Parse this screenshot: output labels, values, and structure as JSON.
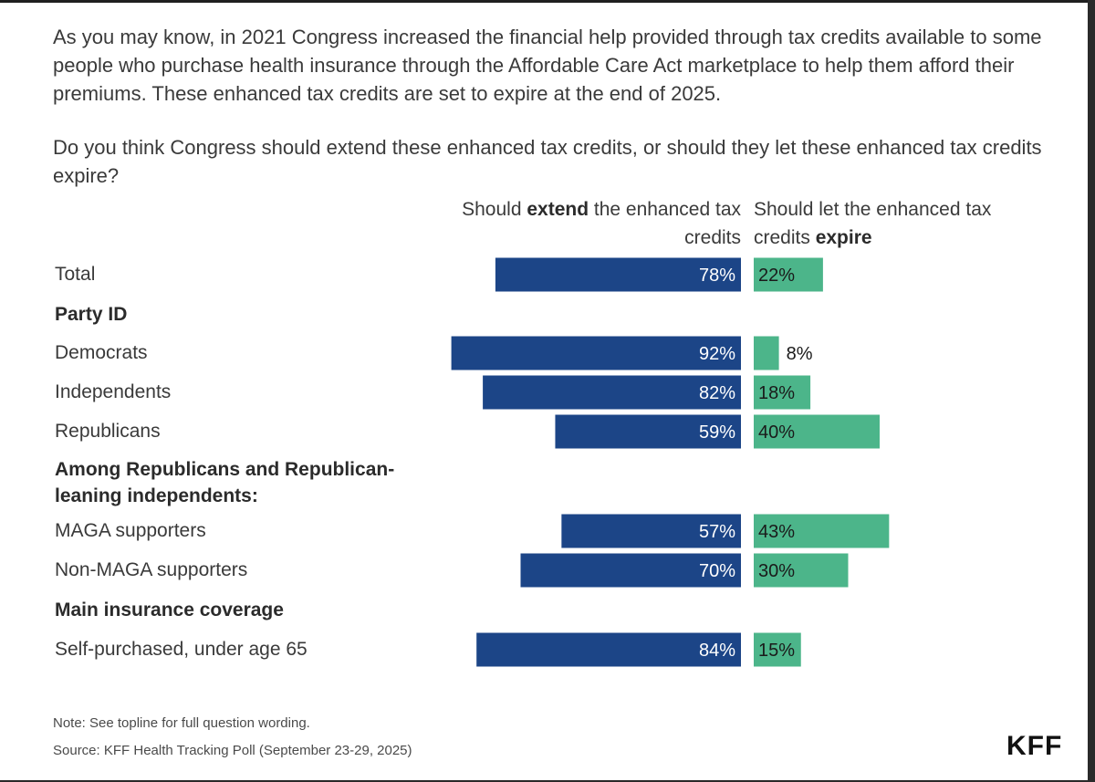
{
  "intro": "As you may know, in 2021 Congress increased the financial help provided through tax credits available to some people who purchase health insurance through the Affordable Care Act marketplace to help them afford their premiums. These enhanced tax credits are set to expire at the end of 2025.",
  "question": "Do you think Congress should extend these enhanced tax credits, or should they let these enhanced tax credits expire?",
  "col_extend": {
    "pre": "Should ",
    "bold": "extend",
    "post_line1": " the enhanced tax",
    "line2": "credits"
  },
  "col_expire": {
    "line1": "Should let the enhanced tax",
    "line2_pre": "credits ",
    "line2_bold": "expire"
  },
  "groups": {
    "party": "Party ID",
    "rep_lean": "Among Republicans and Republican-leaning independents:",
    "coverage": "Main insurance coverage"
  },
  "colors": {
    "extend": "#1c4587",
    "expire": "#4cb58a"
  },
  "chart_data": {
    "type": "bar",
    "orientation": "horizontal-diverging",
    "categories": [
      "Total",
      "Democrats",
      "Independents",
      "Republicans",
      "MAGA supporters",
      "Non-MAGA supporters",
      "Self-purchased, under age 65"
    ],
    "series": [
      {
        "name": "Should extend the enhanced tax credits",
        "values": [
          78,
          92,
          82,
          59,
          57,
          70,
          84
        ],
        "labels": [
          "78%",
          "92%",
          "82%",
          "59%",
          "57%",
          "70%",
          "84%"
        ]
      },
      {
        "name": "Should let the enhanced tax credits expire",
        "values": [
          22,
          8,
          18,
          40,
          43,
          30,
          15
        ],
        "labels": [
          "22%",
          "8%",
          "18%",
          "40%",
          "43%",
          "30%",
          "15%"
        ]
      }
    ],
    "xlim": [
      0,
      100
    ]
  },
  "note": "Note: See topline for full question wording.",
  "source": "Source: KFF Health Tracking Poll (September 23-29, 2025)",
  "logo": "KFF"
}
